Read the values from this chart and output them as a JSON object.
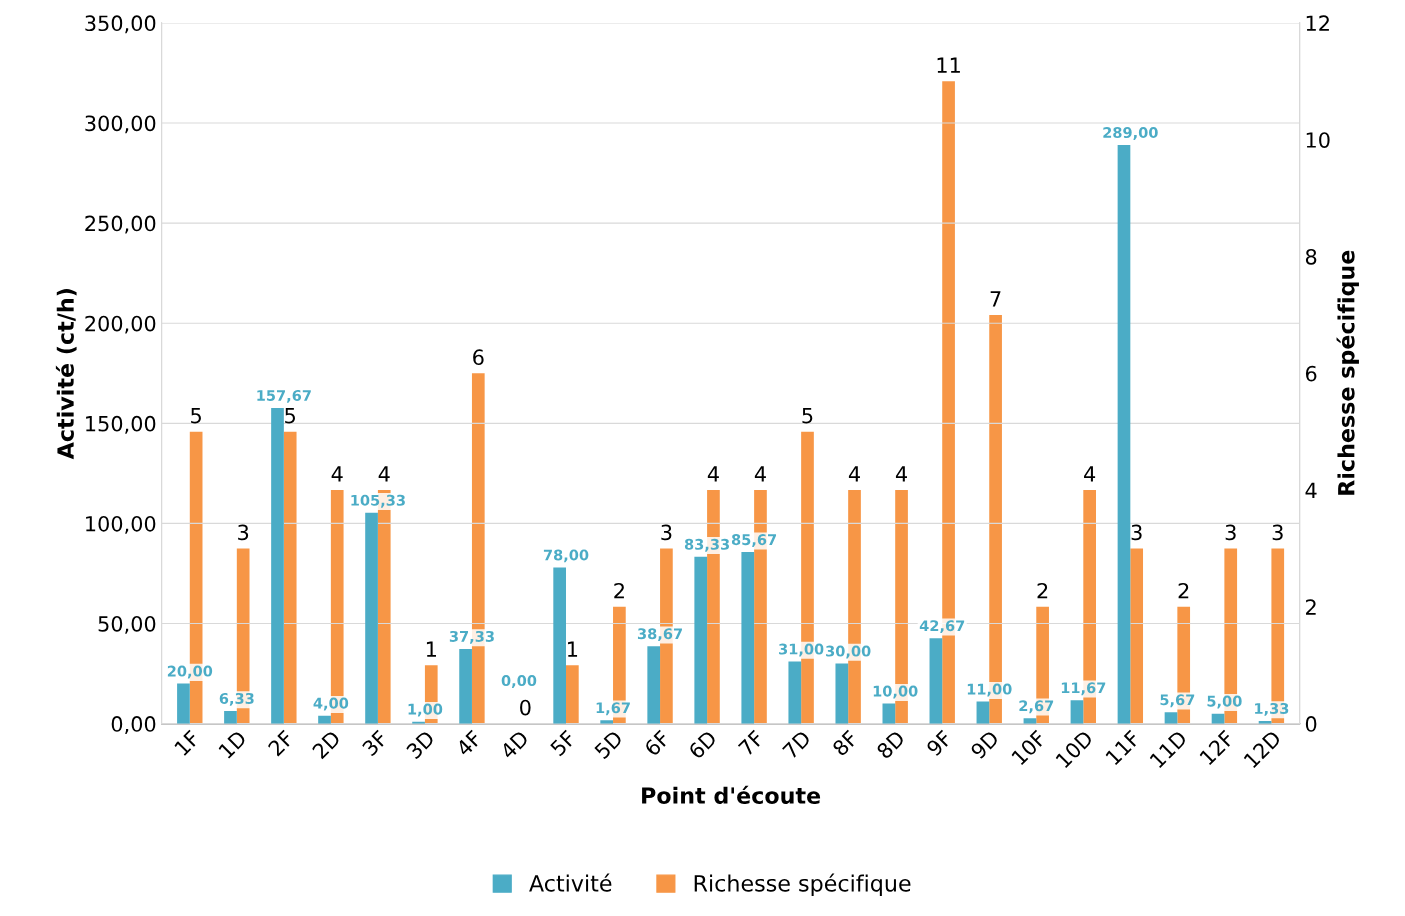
{
  "chart_data": {
    "type": "bar",
    "xlabel": "Point d'écoute",
    "ylabel": "Activité (ct/h)",
    "y2label": "Richesse spécifique",
    "categories": [
      "1F",
      "1D",
      "2F",
      "2D",
      "3F",
      "3D",
      "4F",
      "4D",
      "5F",
      "5D",
      "6F",
      "6D",
      "7F",
      "7D",
      "8F",
      "8D",
      "9F",
      "9D",
      "10F",
      "10D",
      "11F",
      "11D",
      "12F",
      "12D"
    ],
    "series": [
      {
        "name": "Activité",
        "color": "#4bacc6",
        "values": [
          20.0,
          6.33,
          157.67,
          4.0,
          105.33,
          1.0,
          37.33,
          0.0,
          78.0,
          1.67,
          38.67,
          83.33,
          85.67,
          31.0,
          30.0,
          10.0,
          42.67,
          11.0,
          2.67,
          11.67,
          289.0,
          5.67,
          5.0,
          1.33
        ],
        "value_labels": [
          "20,00",
          "6,33",
          "157,67",
          "4,00",
          "105,33",
          "1,00",
          "37,33",
          "0,00",
          "78,00",
          "1,67",
          "38,67",
          "83,33",
          "85,67",
          "31,00",
          "30,00",
          "10,00",
          "42,67",
          "11,00",
          "2,67",
          "11,67",
          "289,00",
          "5,67",
          "5,00",
          "1,33"
        ]
      },
      {
        "name": "Richesse spécifique",
        "color": "#f79646",
        "axis": "y2",
        "values": [
          5,
          3,
          5,
          4,
          4,
          1,
          6,
          0,
          1,
          2,
          3,
          4,
          4,
          5,
          4,
          4,
          11,
          7,
          2,
          4,
          3,
          2,
          3,
          3
        ],
        "value_labels": [
          "5",
          "3",
          "5",
          "4",
          "4",
          "1",
          "6",
          "0",
          "1",
          "2",
          "3",
          "4",
          "4",
          "5",
          "4",
          "4",
          "11",
          "7",
          "2",
          "4",
          "3",
          "2",
          "3",
          "3"
        ]
      }
    ],
    "ylim": [
      0,
      350
    ],
    "yticks": [
      {
        "value": 0,
        "label": "0,00"
      },
      {
        "value": 50,
        "label": "50,00"
      },
      {
        "value": 100,
        "label": "100,00"
      },
      {
        "value": 150,
        "label": "150,00"
      },
      {
        "value": 200,
        "label": "200,00"
      },
      {
        "value": 250,
        "label": "250,00"
      },
      {
        "value": 300,
        "label": "300,00"
      },
      {
        "value": 350,
        "label": "350,00"
      }
    ],
    "y2lim": [
      0,
      12
    ],
    "y2ticks": [
      0,
      2,
      4,
      6,
      8,
      10,
      12
    ],
    "grid": "y",
    "legend": "bottom"
  }
}
